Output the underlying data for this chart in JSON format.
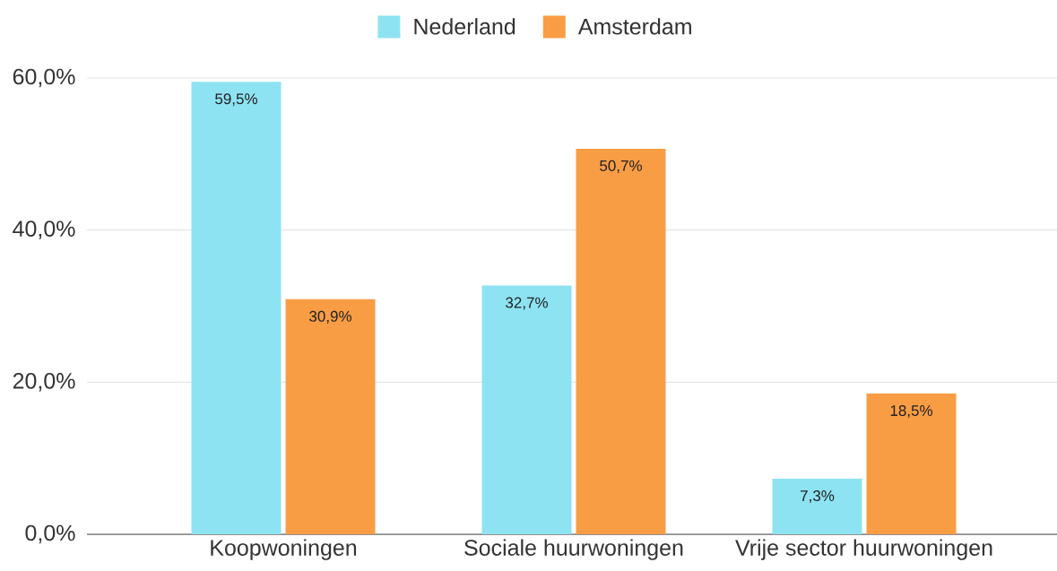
{
  "chart_data": {
    "type": "bar",
    "categories": [
      "Koopwoningen",
      "Sociale huurwoningen",
      "Vrije sector huurwoningen"
    ],
    "series": [
      {
        "name": "Nederland",
        "color": "#8ee3f2",
        "values": [
          59.5,
          32.7,
          7.3
        ],
        "value_labels": [
          "59,5%",
          "32,7%",
          "7,3%"
        ]
      },
      {
        "name": "Amsterdam",
        "color": "#f99d45",
        "values": [
          30.9,
          50.7,
          18.5
        ],
        "value_labels": [
          "30,9%",
          "50,7%",
          "18,5%"
        ]
      }
    ],
    "ylim": [
      0,
      60
    ],
    "yticks": [
      {
        "value": 0,
        "label": "0,0%"
      },
      {
        "value": 20,
        "label": "20,0%"
      },
      {
        "value": 40,
        "label": "40,0%"
      },
      {
        "value": 60,
        "label": "60,0%"
      }
    ],
    "grid": "y",
    "legend": "top"
  }
}
